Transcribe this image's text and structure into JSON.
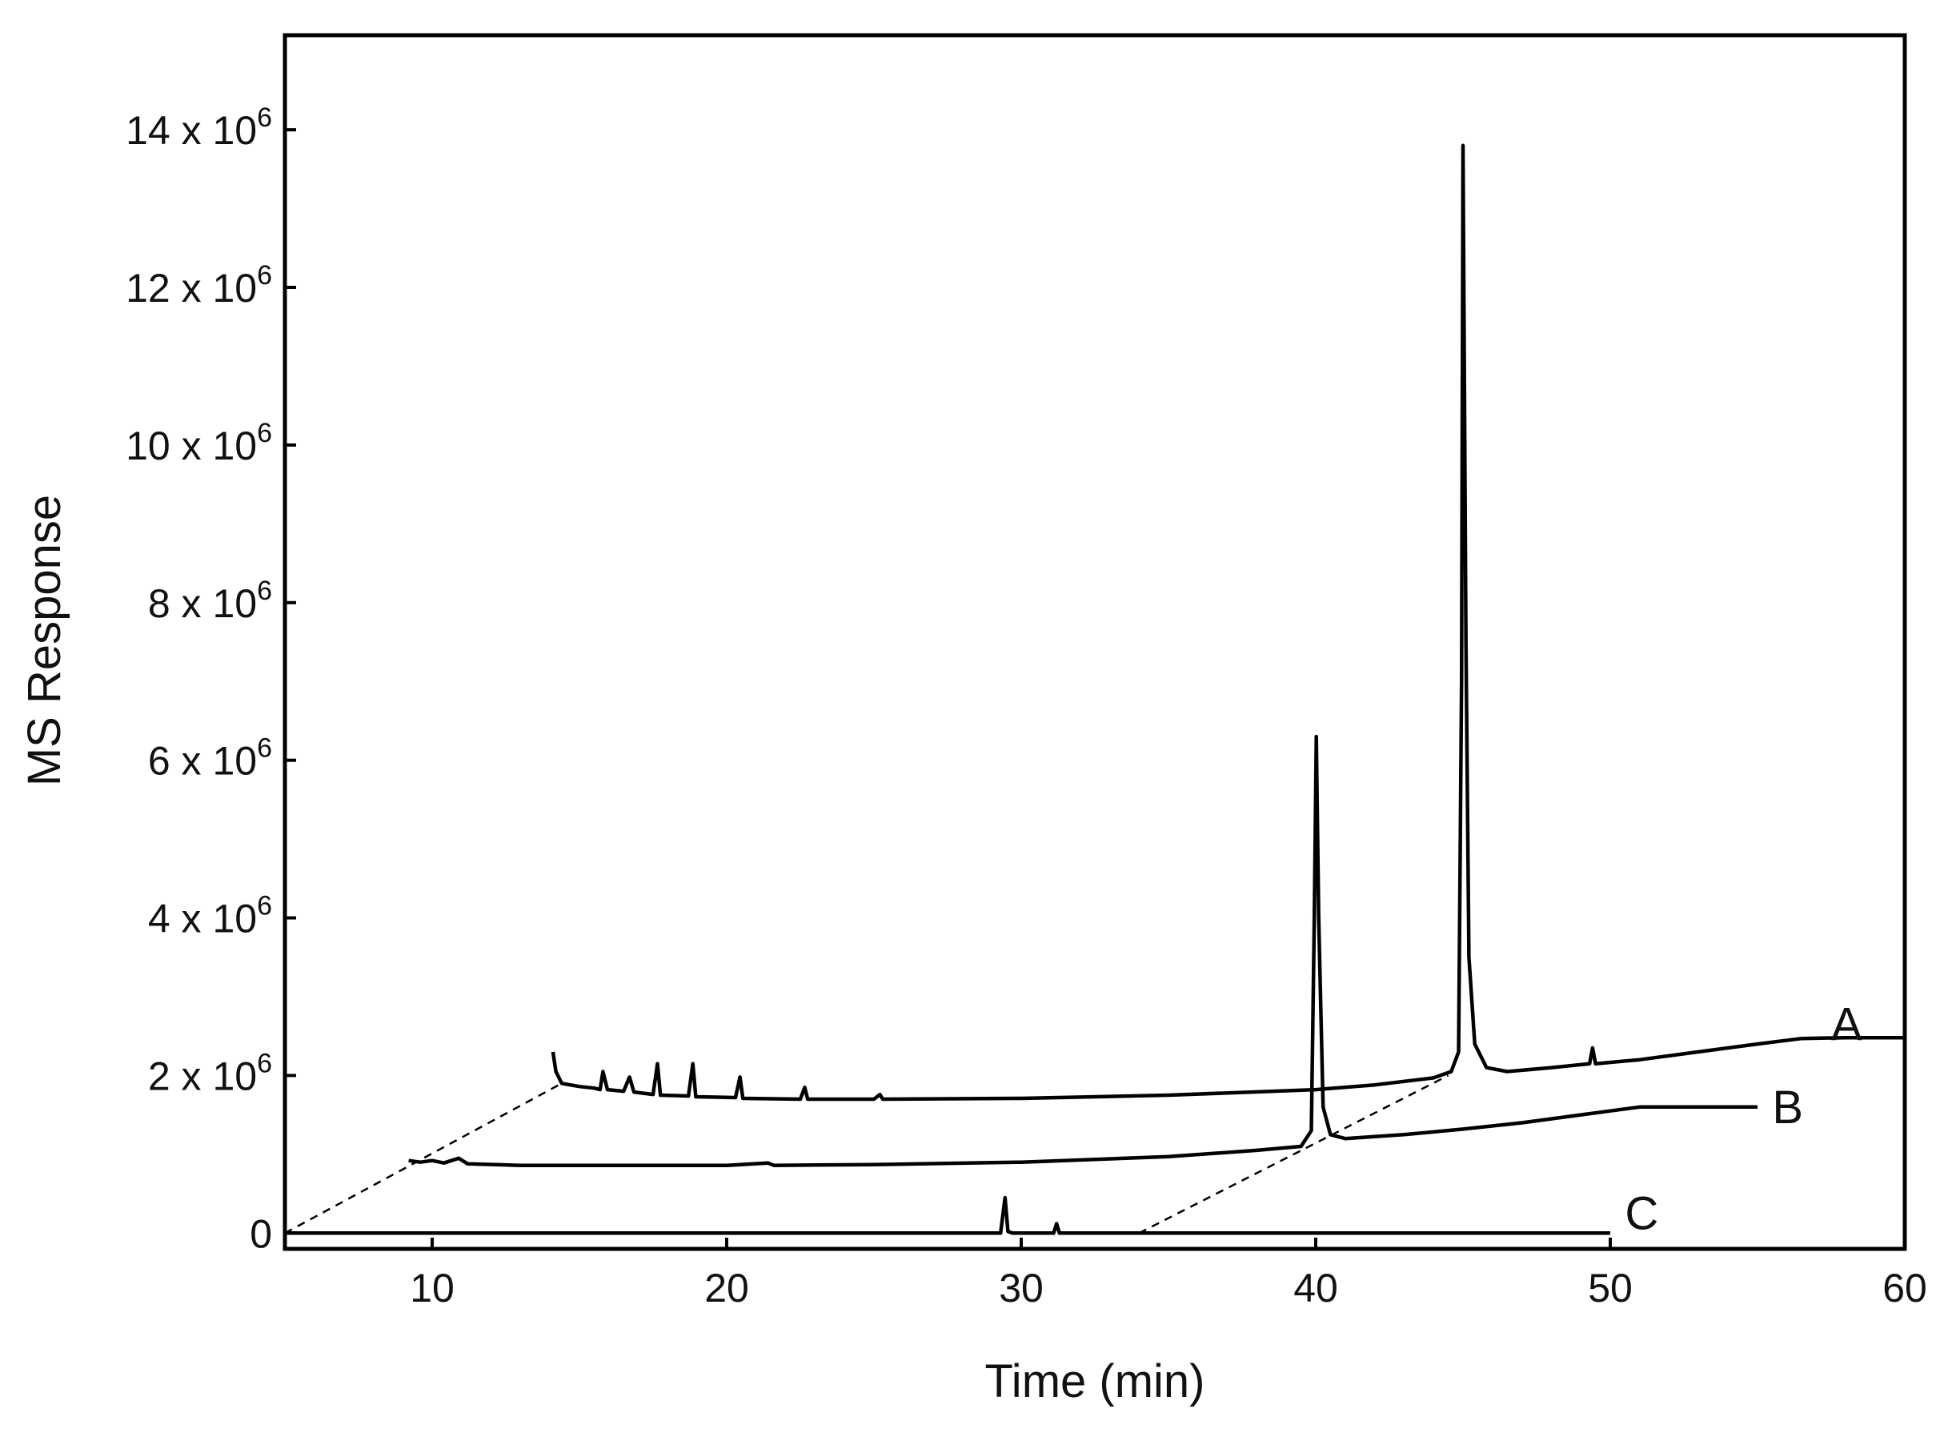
{
  "chart_data": {
    "type": "line",
    "xlabel": "Time (min)",
    "ylabel": "MS Response",
    "xlim": [
      5,
      60
    ],
    "ylim": [
      -0.2,
      15.2
    ],
    "y_scale_note": "x 10^6",
    "x_ticks": [
      {
        "value": 10,
        "label": "10"
      },
      {
        "value": 20,
        "label": "20"
      },
      {
        "value": 30,
        "label": "30"
      },
      {
        "value": 40,
        "label": "40"
      },
      {
        "value": 50,
        "label": "50"
      },
      {
        "value": 60,
        "label": "60"
      }
    ],
    "y_ticks": [
      {
        "value": 0,
        "label": "0"
      },
      {
        "value": 2,
        "mantissa": "2 x 10",
        "exp": "6"
      },
      {
        "value": 4,
        "mantissa": "4 x 10",
        "exp": "6"
      },
      {
        "value": 6,
        "mantissa": "6 x 10",
        "exp": "6"
      },
      {
        "value": 8,
        "mantissa": "8 x 10",
        "exp": "6"
      },
      {
        "value": 10,
        "mantissa": "10 x 10",
        "exp": "6"
      },
      {
        "value": 12,
        "mantissa": "12 x 10",
        "exp": "6"
      },
      {
        "value": 14,
        "mantissa": "14 x 10",
        "exp": "6"
      }
    ],
    "series": [
      {
        "name": "A",
        "points": [
          [
            14.1,
            2.3
          ],
          [
            14.2,
            2.05
          ],
          [
            14.4,
            1.9
          ],
          [
            15.0,
            1.86
          ],
          [
            15.5,
            1.84
          ],
          [
            15.7,
            1.82
          ],
          [
            15.8,
            2.05
          ],
          [
            15.95,
            1.82
          ],
          [
            16.5,
            1.8
          ],
          [
            16.7,
            1.98
          ],
          [
            16.85,
            1.79
          ],
          [
            17.5,
            1.76
          ],
          [
            17.65,
            2.15
          ],
          [
            17.75,
            1.75
          ],
          [
            18.7,
            1.74
          ],
          [
            18.85,
            2.15
          ],
          [
            18.95,
            1.73
          ],
          [
            20.3,
            1.72
          ],
          [
            20.45,
            1.98
          ],
          [
            20.55,
            1.71
          ],
          [
            22.5,
            1.7
          ],
          [
            22.65,
            1.85
          ],
          [
            22.75,
            1.7
          ],
          [
            25.0,
            1.7
          ],
          [
            25.2,
            1.76
          ],
          [
            25.3,
            1.7
          ],
          [
            30.0,
            1.71
          ],
          [
            35.0,
            1.75
          ],
          [
            40.0,
            1.82
          ],
          [
            42.0,
            1.88
          ],
          [
            44.0,
            1.97
          ],
          [
            44.6,
            2.05
          ],
          [
            44.85,
            2.3
          ],
          [
            44.95,
            7.0
          ],
          [
            45.0,
            13.8
          ],
          [
            45.1,
            7.5
          ],
          [
            45.2,
            3.5
          ],
          [
            45.4,
            2.4
          ],
          [
            45.8,
            2.1
          ],
          [
            46.5,
            2.05
          ],
          [
            48.0,
            2.1
          ],
          [
            49.3,
            2.15
          ],
          [
            49.4,
            2.35
          ],
          [
            49.5,
            2.15
          ],
          [
            51.0,
            2.2
          ],
          [
            53.0,
            2.3
          ],
          [
            55.0,
            2.4
          ],
          [
            56.5,
            2.47
          ],
          [
            58.0,
            2.48
          ],
          [
            60.0,
            2.48
          ]
        ]
      },
      {
        "name": "B",
        "points": [
          [
            9.2,
            0.92
          ],
          [
            9.6,
            0.9
          ],
          [
            10.0,
            0.92
          ],
          [
            10.4,
            0.89
          ],
          [
            10.9,
            0.95
          ],
          [
            11.2,
            0.88
          ],
          [
            13.0,
            0.86
          ],
          [
            20.0,
            0.86
          ],
          [
            21.4,
            0.89
          ],
          [
            21.6,
            0.86
          ],
          [
            25.0,
            0.87
          ],
          [
            30.0,
            0.9
          ],
          [
            35.0,
            0.97
          ],
          [
            38.0,
            1.05
          ],
          [
            39.5,
            1.1
          ],
          [
            39.85,
            1.3
          ],
          [
            39.95,
            4.0
          ],
          [
            40.02,
            6.3
          ],
          [
            40.1,
            4.0
          ],
          [
            40.25,
            1.6
          ],
          [
            40.5,
            1.25
          ],
          [
            41.0,
            1.2
          ],
          [
            43.0,
            1.25
          ],
          [
            45.0,
            1.32
          ],
          [
            47.0,
            1.4
          ],
          [
            49.0,
            1.5
          ],
          [
            50.0,
            1.55
          ],
          [
            51.0,
            1.6
          ],
          [
            52.0,
            1.6
          ],
          [
            55.0,
            1.6
          ]
        ]
      },
      {
        "name": "C",
        "points": [
          [
            5.0,
            0.0
          ],
          [
            29.3,
            0.0
          ],
          [
            29.45,
            0.45
          ],
          [
            29.55,
            0.02
          ],
          [
            29.7,
            0.0
          ],
          [
            31.1,
            0.0
          ],
          [
            31.2,
            0.12
          ],
          [
            31.3,
            0.0
          ],
          [
            50.0,
            0.0
          ]
        ]
      }
    ],
    "offset_guides": [
      {
        "from": [
          5.0,
          0.0
        ],
        "to": [
          14.4,
          1.9
        ]
      },
      {
        "from": [
          34.0,
          0.0
        ],
        "to": [
          44.5,
          2.0
        ]
      }
    ],
    "label_anchors": [
      {
        "label": "A",
        "x": 57.5,
        "y": 2.65
      },
      {
        "label": "B",
        "x": 55.5,
        "y": 1.6
      },
      {
        "label": "C",
        "x": 50.5,
        "y": 0.25
      }
    ]
  }
}
